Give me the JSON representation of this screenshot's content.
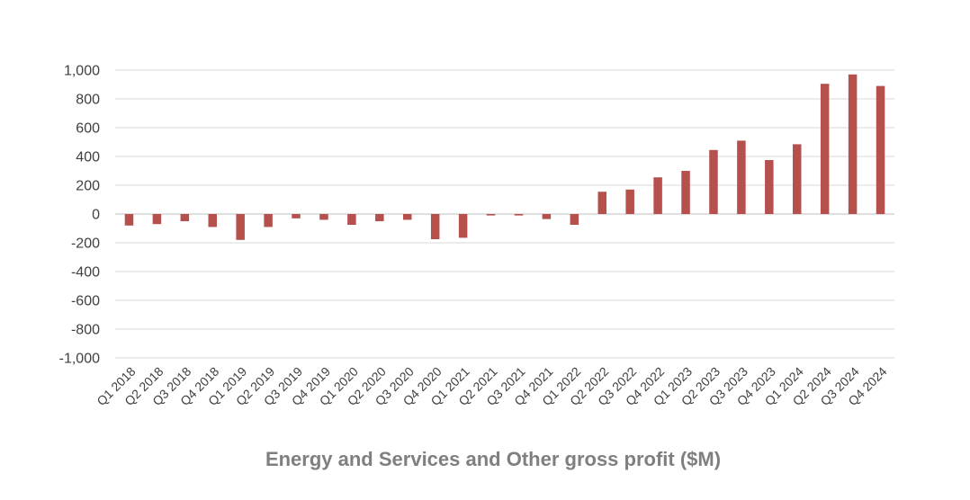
{
  "chart_data": {
    "type": "bar",
    "title": "Energy and Services and Other gross profit ($M)",
    "xlabel": "",
    "ylabel": "",
    "ylim": [
      -1000,
      1000
    ],
    "yticks": [
      "1,000",
      "800",
      "600",
      "400",
      "200",
      "0",
      "-200",
      "-400",
      "-600",
      "-800",
      "-1,000"
    ],
    "ytick_values": [
      1000,
      800,
      600,
      400,
      200,
      0,
      -200,
      -400,
      -600,
      -800,
      -1000
    ],
    "grid": true,
    "bar_color": "#b5504d",
    "categories": [
      "Q1 2018",
      "Q2 2018",
      "Q3 2018",
      "Q4 2018",
      "Q1 2019",
      "Q2 2019",
      "Q3 2019",
      "Q4 2019",
      "Q1 2020",
      "Q2 2020",
      "Q3 2020",
      "Q4 2020",
      "Q1 2021",
      "Q2 2021",
      "Q3 2021",
      "Q4 2021",
      "Q1 2022",
      "Q2 2022",
      "Q3 2022",
      "Q4 2022",
      "Q1 2023",
      "Q2 2023",
      "Q3 2023",
      "Q4 2023",
      "Q1 2024",
      "Q2 2024",
      "Q3 2024",
      "Q4 2024"
    ],
    "values": [
      -80,
      -70,
      -50,
      -90,
      -180,
      -90,
      -30,
      -40,
      -75,
      -50,
      -40,
      -175,
      -165,
      -10,
      -10,
      -35,
      -75,
      155,
      170,
      255,
      300,
      445,
      510,
      375,
      485,
      905,
      970,
      890
    ]
  }
}
